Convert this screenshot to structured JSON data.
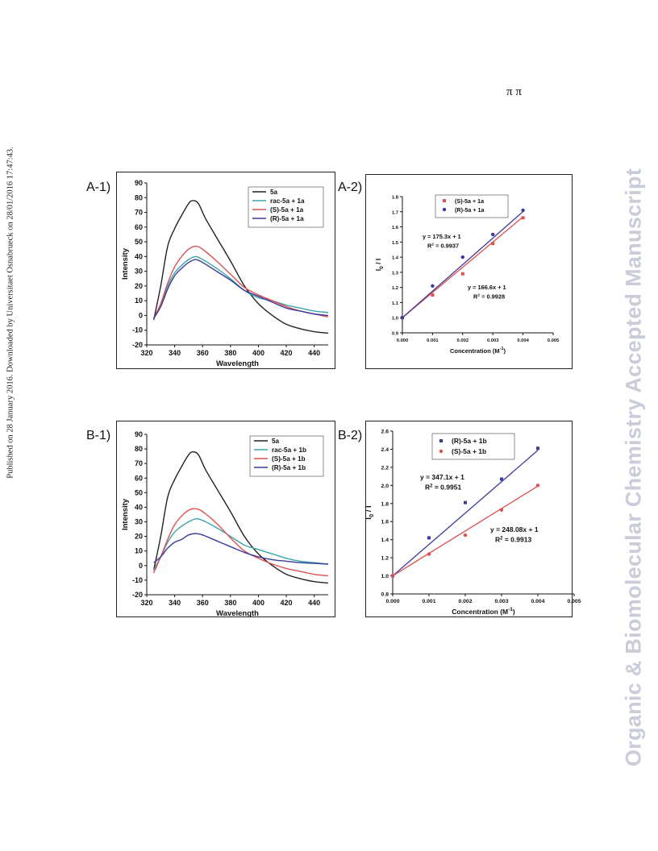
{
  "header": {
    "pi_symbols": "π π",
    "side_note": "Published on 28 January 2016. Downloaded by Universitaet Osnabrueck on 28/01/2016 17:47:43.",
    "watermark": "Organic & Biomolecular Chemistry Accepted Manuscript"
  },
  "panels": {
    "a1": "A-1)",
    "a2": "A-2)",
    "b1": "B-1)",
    "b2": "B-2)"
  },
  "colors": {
    "black": "#222222",
    "teal": "#3aa6a6",
    "red": "#e05050",
    "navy": "#3a3a9c"
  },
  "chart_data": [
    {
      "id": "A-1",
      "type": "line",
      "xlabel": "Wavelength",
      "ylabel": "Intensity",
      "xlim": [
        320,
        450
      ],
      "ylim": [
        -20,
        90
      ],
      "xticks": [
        320,
        340,
        360,
        380,
        400,
        420,
        440
      ],
      "yticks": [
        -20,
        -10,
        0,
        10,
        20,
        30,
        40,
        50,
        60,
        70,
        80,
        90
      ],
      "legend_position": "top-right",
      "series": [
        {
          "name": "5a",
          "color": "#222222",
          "x": [
            325,
            330,
            335,
            340,
            345,
            350,
            353,
            357,
            362,
            370,
            380,
            390,
            400,
            410,
            420,
            430,
            440,
            450
          ],
          "y": [
            -3,
            20,
            47,
            59,
            68,
            76,
            78,
            76,
            66,
            53,
            37,
            20,
            8,
            0,
            -6,
            -9,
            -11,
            -12
          ]
        },
        {
          "name": "rac-5a + 1a",
          "color": "#3aa6a6",
          "x": [
            325,
            330,
            335,
            340,
            345,
            350,
            355,
            360,
            370,
            380,
            390,
            400,
            410,
            420,
            430,
            440,
            450
          ],
          "y": [
            -2,
            7,
            20,
            29,
            34,
            38,
            40,
            38,
            32,
            25,
            17,
            12,
            10,
            7,
            5,
            3,
            2
          ]
        },
        {
          "name": "(S)-5a + 1a",
          "color": "#e05050",
          "x": [
            325,
            330,
            335,
            340,
            345,
            350,
            355,
            360,
            370,
            380,
            390,
            400,
            410,
            420,
            430,
            440,
            450
          ],
          "y": [
            -2,
            8,
            22,
            33,
            40,
            45,
            47,
            45,
            37,
            28,
            19,
            14,
            10,
            6,
            3,
            1,
            -1
          ]
        },
        {
          "name": "(R)-5a + 1a",
          "color": "#3a3a9c",
          "x": [
            325,
            330,
            335,
            340,
            345,
            350,
            355,
            360,
            370,
            380,
            390,
            400,
            410,
            420,
            430,
            440,
            450
          ],
          "y": [
            -2,
            6,
            18,
            27,
            32,
            36,
            38,
            36,
            30,
            24,
            17,
            13,
            9,
            5,
            3,
            1,
            0
          ]
        }
      ]
    },
    {
      "id": "A-2",
      "type": "scatter",
      "xlabel": "Concentration (M",
      "xlabel_sup": "-1",
      "xlabel_end": ")",
      "ylabel": "I",
      "ylabel_sub": "0",
      "ylabel_end": " / I",
      "xlim": [
        0,
        0.005
      ],
      "ylim": [
        0.9,
        1.8
      ],
      "xticks": [
        "0.000",
        "0.001",
        "0.002",
        "0.003",
        "0.004",
        "0.005"
      ],
      "yticks": [
        "0.9",
        "1.0",
        "1.1",
        "1.2",
        "1.3",
        "1.4",
        "1.5",
        "1.6",
        "1.7",
        "1.8"
      ],
      "legend_position": "top-left",
      "series": [
        {
          "name": "(S)-5a + 1a",
          "color": "#e05050",
          "x": [
            0,
            0.001,
            0.002,
            0.003,
            0.004
          ],
          "y": [
            1.0,
            1.15,
            1.29,
            1.49,
            1.66
          ],
          "fit": {
            "slope": 166.6,
            "intercept": 1
          }
        },
        {
          "name": "(R)-5a + 1a",
          "color": "#3a3a9c",
          "x": [
            0,
            0.001,
            0.002,
            0.003,
            0.004
          ],
          "y": [
            1.0,
            1.21,
            1.4,
            1.55,
            1.71
          ],
          "fit": {
            "slope": 175.3,
            "intercept": 1
          }
        }
      ],
      "annotations": [
        {
          "eq": "y = 175.3x + 1",
          "r2_prefix": "R",
          "r2_value": " = 0.9937",
          "near": "(R)-5a + 1a"
        },
        {
          "eq": "y = 166.6x + 1",
          "r2_prefix": "R",
          "r2_value": " = 0.9928",
          "near": "(S)-5a + 1a"
        }
      ]
    },
    {
      "id": "B-1",
      "type": "line",
      "xlabel": "Wavelength",
      "ylabel": "Intensity",
      "xlim": [
        320,
        450
      ],
      "ylim": [
        -20,
        90
      ],
      "xticks": [
        320,
        340,
        360,
        380,
        400,
        420,
        440
      ],
      "yticks": [
        -20,
        -10,
        0,
        10,
        20,
        30,
        40,
        50,
        60,
        70,
        80,
        90
      ],
      "legend_position": "top-right",
      "series": [
        {
          "name": "5a",
          "color": "#222222",
          "x": [
            325,
            330,
            335,
            340,
            345,
            350,
            353,
            357,
            362,
            370,
            380,
            390,
            400,
            410,
            420,
            430,
            440,
            450
          ],
          "y": [
            -3,
            20,
            47,
            59,
            68,
            76,
            78,
            76,
            66,
            53,
            37,
            20,
            8,
            0,
            -6,
            -9,
            -11,
            -12
          ]
        },
        {
          "name": "rac-5a + 1b",
          "color": "#3aa6a6",
          "x": [
            325,
            330,
            335,
            340,
            345,
            350,
            355,
            360,
            370,
            380,
            390,
            400,
            410,
            420,
            430,
            440,
            450
          ],
          "y": [
            -3,
            6,
            16,
            23,
            27,
            30,
            32,
            31,
            26,
            20,
            14,
            11,
            8,
            5,
            3,
            2,
            1
          ]
        },
        {
          "name": "(S)-5a + 1b",
          "color": "#e05050",
          "x": [
            325,
            330,
            335,
            340,
            345,
            350,
            355,
            360,
            370,
            380,
            390,
            400,
            410,
            420,
            430,
            440,
            450
          ],
          "y": [
            -5,
            6,
            18,
            28,
            34,
            38,
            39,
            37,
            29,
            19,
            10,
            5,
            1,
            -2,
            -4,
            -6,
            -7
          ]
        },
        {
          "name": "(R)-5a + 1b",
          "color": "#3a3a9c",
          "x": [
            325,
            330,
            335,
            340,
            345,
            350,
            355,
            360,
            370,
            380,
            390,
            400,
            410,
            420,
            430,
            440,
            450
          ],
          "y": [
            2,
            6,
            12,
            16,
            18,
            21,
            22,
            21,
            17,
            13,
            9,
            6,
            4,
            3,
            2,
            1.5,
            1
          ]
        }
      ]
    },
    {
      "id": "B-2",
      "type": "scatter",
      "xlabel": "Concentration (M",
      "xlabel_sup": "-1",
      "xlabel_end": ")",
      "ylabel": "I",
      "ylabel_sub": "0",
      "ylabel_end": " / I",
      "xlim": [
        0,
        0.005
      ],
      "ylim": [
        0.8,
        2.6
      ],
      "xticks": [
        "0.000",
        "0.001",
        "0.002",
        "0.003",
        "0.004",
        "0.005"
      ],
      "yticks": [
        "0.8",
        "1.0",
        "1.2",
        "1.4",
        "1.6",
        "1.8",
        "2.0",
        "2.2",
        "2.4",
        "2.6"
      ],
      "legend_position": "top-center",
      "series": [
        {
          "name": "(R)-5a + 1b",
          "color": "#3a3a9c",
          "x": [
            0,
            0.001,
            0.002,
            0.003,
            0.004
          ],
          "y": [
            1.0,
            1.42,
            1.81,
            2.07,
            2.41
          ],
          "fit": {
            "slope": 347.1,
            "intercept": 1
          }
        },
        {
          "name": "(S)-5a + 1b",
          "color": "#e05050",
          "x": [
            0,
            0.001,
            0.002,
            0.003,
            0.004
          ],
          "y": [
            1.0,
            1.24,
            1.45,
            1.73,
            2.0
          ],
          "fit": {
            "slope": 248.08,
            "intercept": 1
          }
        }
      ],
      "annotations": [
        {
          "eq": "y = 347.1x + 1",
          "r2_prefix": "R",
          "r2_value": " = 0.9951",
          "near": "(R)-5a + 1b"
        },
        {
          "eq": "y = 248.08x + 1",
          "r2_prefix": "R",
          "r2_value": " = 0.9913",
          "near": "(S)-5a + 1b"
        }
      ]
    }
  ]
}
